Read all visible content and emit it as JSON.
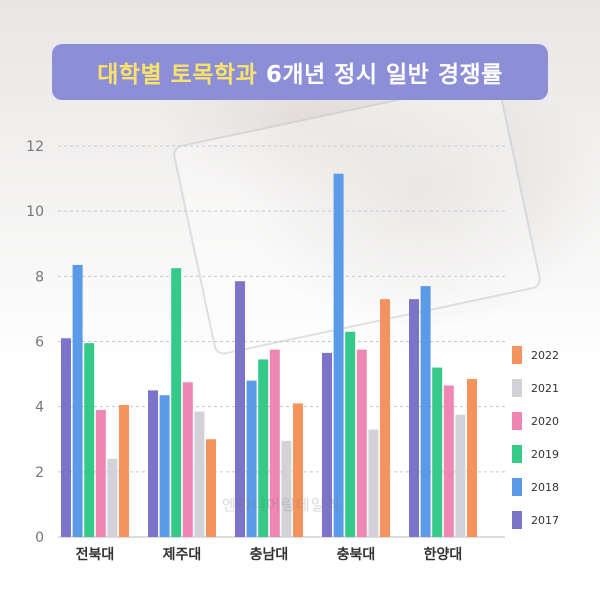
{
  "title": {
    "highlight": "대학별 토목학과",
    "rest": "6개년 정시 일반 경쟁률"
  },
  "watermark": "엔지니어링데일리",
  "chart_data": {
    "type": "bar",
    "categories": [
      "전북대",
      "제주대",
      "충남대",
      "충북대",
      "한양대"
    ],
    "series": [
      {
        "name": "2017",
        "color": "#7b74c8",
        "values": [
          6.1,
          4.5,
          7.85,
          5.65,
          7.3
        ]
      },
      {
        "name": "2018",
        "color": "#5a9ae6",
        "values": [
          8.35,
          4.35,
          4.8,
          11.15,
          7.7
        ]
      },
      {
        "name": "2019",
        "color": "#35c98a",
        "values": [
          5.95,
          8.25,
          5.45,
          6.3,
          5.2
        ]
      },
      {
        "name": "2020",
        "color": "#ef86b4",
        "values": [
          3.9,
          4.75,
          5.75,
          5.75,
          4.65
        ]
      },
      {
        "name": "2021",
        "color": "#d2d2d8",
        "values": [
          2.4,
          3.85,
          2.95,
          3.3,
          3.75
        ]
      },
      {
        "name": "2022",
        "color": "#f3935d",
        "values": [
          4.05,
          3.0,
          4.1,
          7.3,
          4.85
        ]
      }
    ],
    "yticks": [
      0,
      2,
      4,
      6,
      8,
      10,
      12
    ],
    "ylim": [
      0,
      12
    ],
    "grid": true,
    "legend_position": "right"
  }
}
